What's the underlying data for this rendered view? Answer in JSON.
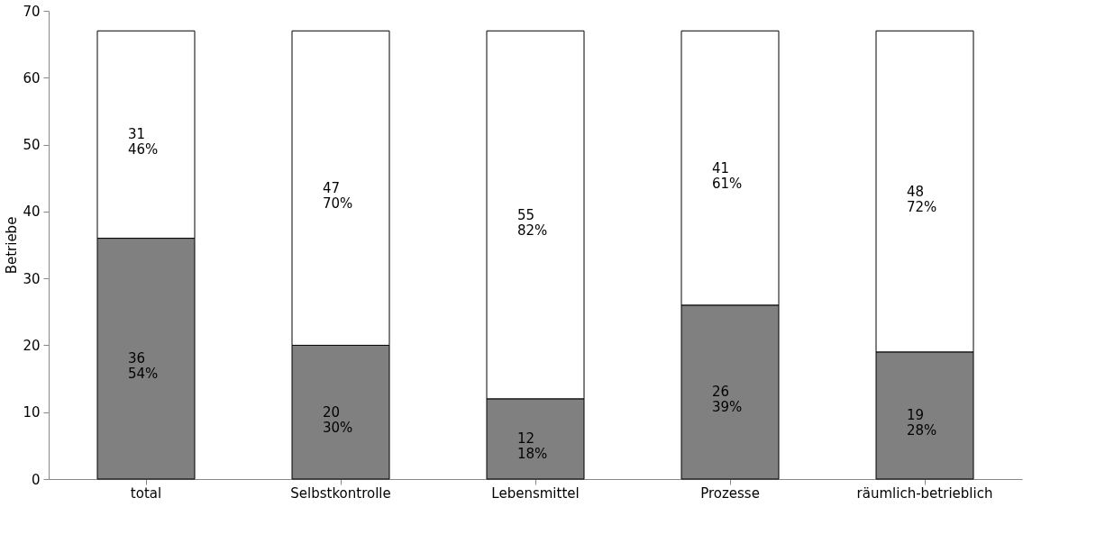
{
  "chart_data": {
    "type": "bar",
    "ylabel": "Betriebe",
    "categories": [
      "total",
      "Selbstkontrolle",
      "Lebensmittel",
      "Prozesse",
      "räumlich-betrieblich"
    ],
    "stacked": true,
    "series": [
      {
        "color": "#808080",
        "values": [
          36,
          20,
          12,
          26,
          19
        ],
        "value_labels": [
          "36\n54%",
          "20\n30%",
          "12\n18%",
          "26\n39%",
          "19\n28%"
        ]
      },
      {
        "color": "#ffffff",
        "values": [
          31,
          47,
          55,
          41,
          48
        ],
        "value_labels": [
          "31\n46%",
          "47\n70%",
          "55\n82%",
          "41\n61%",
          "48\n72%"
        ]
      }
    ],
    "ylim": [
      0,
      70
    ],
    "yticks": [
      0,
      10,
      20,
      30,
      40,
      50,
      60,
      70
    ],
    "grid": false
  }
}
